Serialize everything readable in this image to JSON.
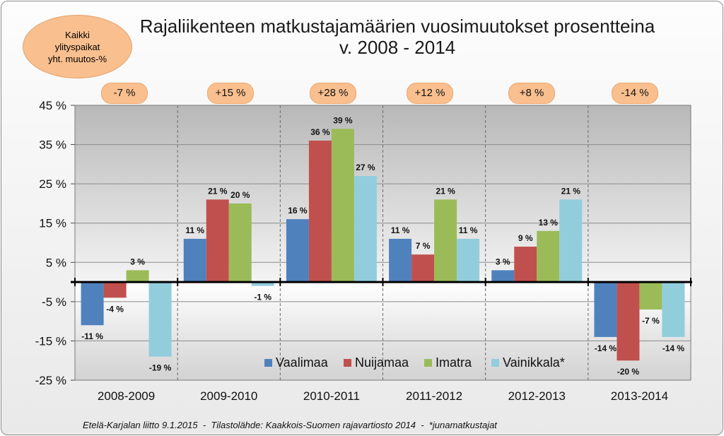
{
  "title_line1": "Rajaliikenteen matkustajamäärien vuosimuutokset prosentteina",
  "title_line2": "v. 2008 - 2014",
  "oval": {
    "line1": "Kaikki",
    "line2": "ylityspaikat",
    "line3": "yht. muutos-%"
  },
  "badges": [
    "-7 %",
    "+15 %",
    "+28 %",
    "+12 %",
    "+8 %",
    "-14 %"
  ],
  "source": "Etelä-Karjalan liitto 9.1.2015  -  Tilastolähde: Kaakkois-Suomen rajavartiosto 2014  -  *junamatkustajat",
  "colors": {
    "Vaalimaa": "#4f81bd",
    "Nuijamaa": "#c0504d",
    "Imatra": "#9bbb59",
    "Vainikkala": "#92cddc"
  },
  "chart_data": {
    "type": "bar",
    "title": "Rajaliikenteen matkustajamäärien vuosimuutokset prosentteina v. 2008 - 2014",
    "categories": [
      "2008-2009",
      "2009-2010",
      "2010-2011",
      "2011-2012",
      "2012-2013",
      "2013-2014"
    ],
    "series": [
      {
        "name": "Vaalimaa",
        "values": [
          -11,
          11,
          16,
          11,
          3,
          -14
        ],
        "labels": [
          "-11 %",
          "11 %",
          "16 %",
          "11 %",
          "3 %",
          "-14 %"
        ]
      },
      {
        "name": "Nuijamaa",
        "values": [
          -4,
          21,
          36,
          7,
          9,
          -20
        ],
        "labels": [
          "-4 %",
          "21 %",
          "36 %",
          "7 %",
          "9 %",
          "-20 %"
        ]
      },
      {
        "name": "Imatra",
        "values": [
          3,
          20,
          39,
          21,
          13,
          -7
        ],
        "labels": [
          "3 %",
          "20 %",
          "39 %",
          "21 %",
          "13 %",
          "-7 %"
        ]
      },
      {
        "name": "Vainikkala*",
        "values": [
          -19,
          -1,
          27,
          11,
          21,
          -14
        ],
        "labels": [
          "-19 %",
          "-1 %",
          "27 %",
          "11 %",
          "21 %",
          "-14 %"
        ]
      }
    ],
    "yticks": [
      "45 %",
      "35 %",
      "25 %",
      "15 %",
      "5 %",
      "-5 %",
      "-15 %",
      "-25 %"
    ],
    "ytick_values": [
      45,
      35,
      25,
      15,
      5,
      -5,
      -15,
      -25
    ],
    "ylim": [
      -25,
      45
    ],
    "legend_position": "bottom-right",
    "grid": true
  }
}
